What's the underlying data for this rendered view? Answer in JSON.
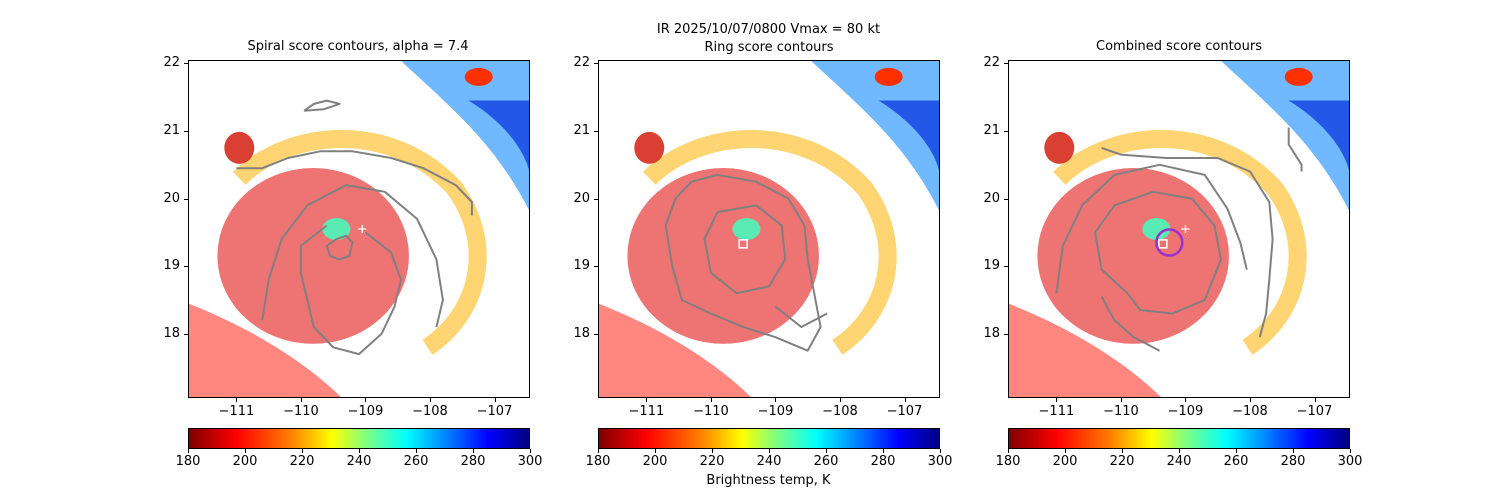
{
  "suptitle_line": "IR  2025/10/07/0800    Vmax = 80 kt",
  "colorbar_label": "Brightness temp, K",
  "chart_data": [
    {
      "type": "heatmap",
      "title": "Spiral score contours, alpha =  7.4",
      "xlim": [
        -111.75,
        -106.45
      ],
      "ylim": [
        17.05,
        22.05
      ],
      "xticks": [
        -111,
        -110,
        -109,
        -108,
        -107
      ],
      "yticks": [
        18,
        19,
        20,
        21,
        22
      ],
      "xtick_labels": [
        "−111",
        "−110",
        "−109",
        "−108",
        "−107"
      ],
      "ytick_labels": [
        "18",
        "19",
        "20",
        "21",
        "22"
      ],
      "colorbar": {
        "range": [
          180,
          300
        ],
        "ticks": [
          "180",
          "200",
          "220",
          "240",
          "260",
          "280",
          "300"
        ]
      },
      "contour_color": "#808080",
      "markers": [
        {
          "kind": "plus",
          "lon": -109.05,
          "lat": 19.55,
          "color": "#ffffff"
        }
      ],
      "contours": [
        [
          [
            -111.0,
            20.45
          ],
          [
            -110.6,
            20.45
          ],
          [
            -110.2,
            20.6
          ],
          [
            -109.7,
            20.7
          ],
          [
            -109.2,
            20.7
          ],
          [
            -108.6,
            20.6
          ],
          [
            -108.1,
            20.45
          ],
          [
            -107.6,
            20.2
          ],
          [
            -107.35,
            19.95
          ],
          [
            -107.35,
            19.75
          ]
        ],
        [
          [
            -109.4,
            19.1
          ],
          [
            -109.25,
            19.15
          ],
          [
            -109.2,
            19.35
          ],
          [
            -109.3,
            19.45
          ],
          [
            -109.45,
            19.4
          ],
          [
            -109.6,
            19.3
          ],
          [
            -109.55,
            19.15
          ],
          [
            -109.4,
            19.1
          ]
        ],
        [
          [
            -109.0,
            19.5
          ],
          [
            -108.6,
            19.2
          ],
          [
            -108.45,
            18.8
          ],
          [
            -108.55,
            18.4
          ],
          [
            -108.75,
            18.0
          ],
          [
            -109.1,
            17.7
          ],
          [
            -109.5,
            17.8
          ],
          [
            -109.8,
            18.1
          ],
          [
            -109.9,
            18.5
          ],
          [
            -110.0,
            18.9
          ],
          [
            -110.0,
            19.3
          ],
          [
            -109.6,
            19.6
          ]
        ],
        [
          [
            -110.6,
            18.2
          ],
          [
            -110.5,
            18.8
          ],
          [
            -110.3,
            19.4
          ],
          [
            -109.9,
            19.9
          ],
          [
            -109.3,
            20.2
          ],
          [
            -108.7,
            20.1
          ],
          [
            -108.2,
            19.7
          ],
          [
            -107.9,
            19.1
          ],
          [
            -107.8,
            18.5
          ],
          [
            -107.9,
            18.1
          ]
        ],
        [
          [
            -109.95,
            21.3
          ],
          [
            -109.8,
            21.4
          ],
          [
            -109.6,
            21.45
          ],
          [
            -109.4,
            21.4
          ],
          [
            -109.65,
            21.32
          ],
          [
            -109.95,
            21.3
          ]
        ]
      ]
    },
    {
      "type": "heatmap",
      "title": "Ring score contours",
      "xlim": [
        -111.75,
        -106.45
      ],
      "ylim": [
        17.05,
        22.05
      ],
      "xticks": [
        -111,
        -110,
        -109,
        -108,
        -107
      ],
      "yticks": [
        18,
        19,
        20,
        21,
        22
      ],
      "xtick_labels": [
        "−111",
        "−110",
        "−109",
        "−108",
        "−107"
      ],
      "ytick_labels": [
        "18",
        "19",
        "20",
        "21",
        "22"
      ],
      "colorbar": {
        "range": [
          180,
          300
        ],
        "ticks": [
          "180",
          "200",
          "220",
          "240",
          "260",
          "280",
          "300"
        ]
      },
      "contour_color": "#808080",
      "markers": [
        {
          "kind": "square",
          "lon": -109.5,
          "lat": 19.33,
          "color": "#ffffff"
        }
      ],
      "contours": [
        [
          [
            -110.3,
            20.25
          ],
          [
            -109.9,
            20.35
          ],
          [
            -109.3,
            20.25
          ],
          [
            -108.8,
            20.0
          ],
          [
            -108.55,
            19.6
          ],
          [
            -108.5,
            19.1
          ],
          [
            -108.4,
            18.6
          ],
          [
            -108.3,
            18.1
          ],
          [
            -108.5,
            17.75
          ],
          [
            -109.0,
            17.95
          ],
          [
            -109.5,
            18.1
          ],
          [
            -110.0,
            18.3
          ],
          [
            -110.45,
            18.5
          ],
          [
            -110.6,
            19.0
          ],
          [
            -110.7,
            19.6
          ],
          [
            -110.55,
            20.0
          ],
          [
            -110.3,
            20.25
          ]
        ],
        [
          [
            -109.9,
            19.8
          ],
          [
            -109.3,
            19.9
          ],
          [
            -108.9,
            19.6
          ],
          [
            -108.85,
            19.1
          ],
          [
            -109.1,
            18.7
          ],
          [
            -109.6,
            18.6
          ],
          [
            -110.0,
            18.9
          ],
          [
            -110.1,
            19.4
          ],
          [
            -109.9,
            19.8
          ]
        ],
        [
          [
            -109.0,
            18.4
          ],
          [
            -108.6,
            18.1
          ],
          [
            -108.2,
            18.3
          ]
        ]
      ]
    },
    {
      "type": "heatmap",
      "title": "Combined score contours",
      "xlim": [
        -111.75,
        -106.45
      ],
      "ylim": [
        17.05,
        22.05
      ],
      "xticks": [
        -111,
        -110,
        -109,
        -108,
        -107
      ],
      "yticks": [
        18,
        19,
        20,
        21,
        22
      ],
      "xtick_labels": [
        "−111",
        "−110",
        "−109",
        "−108",
        "−107"
      ],
      "ytick_labels": [
        "18",
        "19",
        "20",
        "21",
        "22"
      ],
      "colorbar": {
        "range": [
          180,
          300
        ],
        "ticks": [
          "180",
          "200",
          "220",
          "240",
          "260",
          "280",
          "300"
        ]
      },
      "contour_color": "#808080",
      "markers": [
        {
          "kind": "plus",
          "lon": -109.0,
          "lat": 19.55,
          "color": "#ffffff"
        },
        {
          "kind": "square",
          "lon": -109.35,
          "lat": 19.33,
          "color": "#ffffff"
        },
        {
          "kind": "circle",
          "lon": -109.25,
          "lat": 19.35,
          "color": "#9932cc"
        }
      ],
      "contours": [
        [
          [
            -107.4,
            21.05
          ],
          [
            -107.4,
            20.8
          ],
          [
            -107.2,
            20.5
          ],
          [
            -107.2,
            20.4
          ]
        ],
        [
          [
            -110.3,
            20.75
          ],
          [
            -110.0,
            20.65
          ],
          [
            -109.3,
            20.6
          ],
          [
            -108.5,
            20.6
          ],
          [
            -108.0,
            20.4
          ],
          [
            -107.7,
            19.95
          ],
          [
            -107.65,
            19.4
          ],
          [
            -107.7,
            18.8
          ],
          [
            -107.75,
            18.3
          ],
          [
            -107.85,
            17.95
          ]
        ],
        [
          [
            -111.0,
            18.6
          ],
          [
            -110.9,
            19.3
          ],
          [
            -110.6,
            19.9
          ],
          [
            -110.1,
            20.35
          ],
          [
            -109.4,
            20.5
          ],
          [
            -108.7,
            20.35
          ],
          [
            -108.35,
            19.85
          ],
          [
            -108.15,
            19.35
          ],
          [
            -108.05,
            18.95
          ]
        ],
        [
          [
            -109.9,
            18.6
          ],
          [
            -110.3,
            18.95
          ],
          [
            -110.4,
            19.5
          ],
          [
            -110.1,
            19.9
          ],
          [
            -109.5,
            20.1
          ],
          [
            -108.9,
            20.0
          ],
          [
            -108.55,
            19.6
          ],
          [
            -108.45,
            19.1
          ],
          [
            -108.7,
            18.5
          ],
          [
            -109.2,
            18.3
          ],
          [
            -109.7,
            18.35
          ],
          [
            -109.9,
            18.6
          ]
        ],
        [
          [
            -110.3,
            18.55
          ],
          [
            -110.1,
            18.2
          ],
          [
            -109.8,
            17.95
          ],
          [
            -109.4,
            17.75
          ]
        ]
      ]
    }
  ]
}
